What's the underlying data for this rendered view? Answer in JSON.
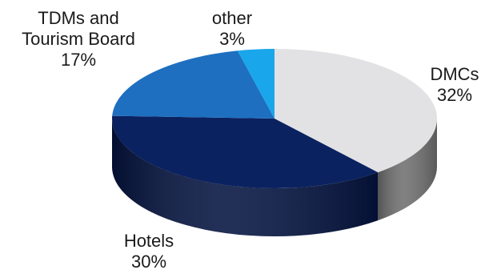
{
  "chart_data": {
    "type": "pie",
    "style": "3d",
    "slices": [
      {
        "label_lines": [
          "DMCs",
          "32%"
        ],
        "value": 32,
        "top_color": "#e2e2e4",
        "side_color": "#707070"
      },
      {
        "label_lines": [
          "Hotels",
          "30%"
        ],
        "value": 30,
        "top_color": "#0b2260",
        "side_color": "#041340"
      },
      {
        "label_lines": [
          "TDMs and",
          "Tourism Board",
          "17%"
        ],
        "value": 17,
        "top_color": "#1e6fc0",
        "side_color": "#0f4d8f"
      },
      {
        "label_lines": [
          "other",
          "3%"
        ],
        "value": 3,
        "top_color": "#19a6ea",
        "side_color": "#0d7fb8"
      }
    ]
  }
}
